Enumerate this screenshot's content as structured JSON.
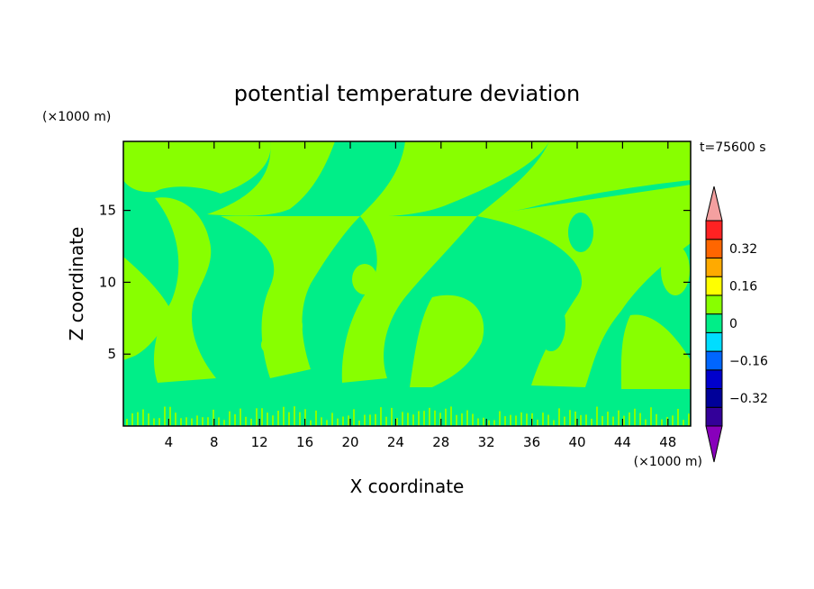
{
  "chart_data": {
    "type": "heatmap",
    "title": "potential temperature deviation",
    "xlabel": "X coordinate",
    "ylabel": "Z coordinate",
    "x_unit": "(×1000 m)",
    "y_unit": "(×1000 m)",
    "time_label": "t=75600 s",
    "xlim": [
      0,
      50
    ],
    "ylim": [
      0,
      19.8
    ],
    "x_ticks": [
      4,
      8,
      12,
      16,
      20,
      24,
      28,
      32,
      36,
      40,
      44,
      48
    ],
    "y_ticks": [
      5,
      10,
      15
    ],
    "dominant_levels": [
      {
        "range": [
          -0.08,
          0
        ],
        "color": "#00ee88"
      },
      {
        "range": [
          0,
          0.08
        ],
        "color": "#88ff00"
      }
    ],
    "colorbar": {
      "levels": [
        -0.4,
        -0.32,
        -0.24,
        -0.16,
        -0.08,
        0,
        0.08,
        0.16,
        0.24,
        0.32,
        0.4
      ],
      "tick_labels": [
        "0.32",
        "0.16",
        "0",
        "−0.16",
        "−0.32"
      ],
      "tick_values": [
        0.32,
        0.16,
        0,
        -0.16,
        -0.32
      ],
      "colors": [
        "#330099",
        "#000099",
        "#0000cc",
        "#0066ff",
        "#00ddff",
        "#00ee88",
        "#88ff00",
        "#ffff00",
        "#ffaa00",
        "#ff6600",
        "#ff2222"
      ],
      "over_color": "#f4a0a0",
      "under_color": "#8800bb",
      "extend": "both"
    }
  }
}
